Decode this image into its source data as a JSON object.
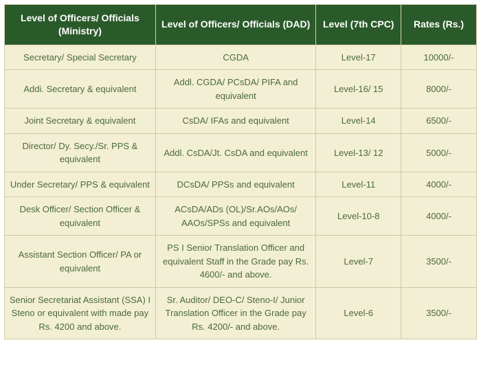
{
  "table": {
    "columns": [
      "Level of Officers/ Officials (Ministry)",
      "Level of Officers/ Officials (DAD)",
      "Level (7th CPC)",
      "Rates (Rs.)"
    ],
    "rows": [
      [
        "Secretary/ Special Secretary",
        "CGDA",
        "Level-17",
        "10000/-"
      ],
      [
        "Addi. Secretary & equivalent",
        "Addl.  CGDA/  PCsDA/  PIFA and equivalent",
        "Level-16/ 15",
        "8000/-"
      ],
      [
        "Joint Secretary & equivalent",
        "CsDA/ IFAs and equivalent",
        "Level-14",
        "6500/-"
      ],
      [
        "Director/ Dy. Secy./Sr. PPS & equivalent",
        "Addl. CsDA/Jt. CsDA and equivalent",
        "Level-13/ 12",
        "5000/-"
      ],
      [
        "Under Secretary/ PPS & equivalent",
        "DCsDA/ PPSs and equivalent",
        "Level-11",
        "4000/-"
      ],
      [
        "Desk Officer/ Section Officer & equivalent",
        "ACsDA/ADs (OL)/Sr.AOs/AOs/ AAOs/SPSs and equivalent",
        "Level-10-8",
        "4000/-"
      ],
      [
        "Assistant Section Officer/ PA or equivalent",
        "PS I Senior Translation Officer and equivalent  Staff  in  the  Grade pay Rs. 4600/- and above.",
        "Level-7",
        "3500/-"
      ],
      [
        "Senior Secretariat Assistant (SSA) I Steno or equivalent with made pay Rs. 4200 and above.",
        "Sr. Auditor/ DEO-C/ Steno-I/ Junior Translation Officer in the Grade pay Rs. 4200/- and above.",
        "Level-6",
        "3500/-"
      ]
    ],
    "header_bg": "#2a5a2a",
    "header_fg": "#ffffff",
    "cell_bg": "#f3efd5",
    "cell_fg": "#4a6a3a",
    "border_color": "#cfc9a0"
  }
}
